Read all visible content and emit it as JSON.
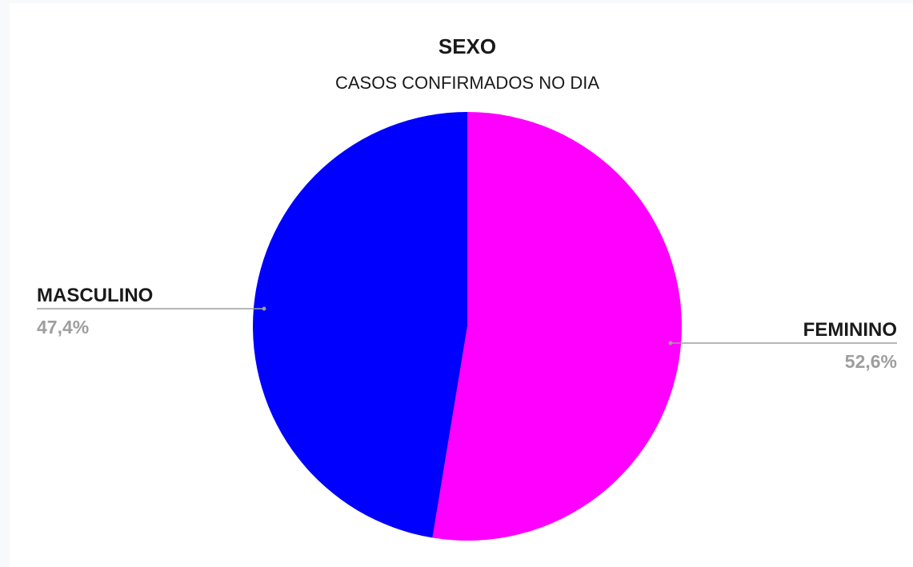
{
  "chart_data": {
    "type": "pie",
    "title": "SEXO",
    "subtitle": "CASOS CONFIRMADOS NO DIA",
    "slices": [
      {
        "label": "FEMININO",
        "value": 52.6,
        "value_label": "52,6%",
        "color": "#ff00ff"
      },
      {
        "label": "MASCULINO",
        "value": 47.4,
        "value_label": "47,4%",
        "color": "#0000ff"
      }
    ],
    "start_angle": "top, clockwise",
    "legend": "none (labels on leader lines)"
  }
}
